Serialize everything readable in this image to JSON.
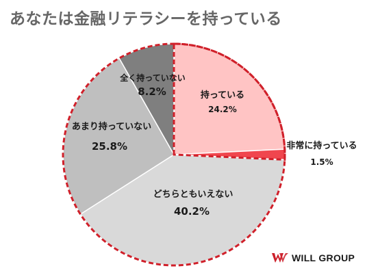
{
  "title": "あなたは金融リテラシーを持っている",
  "logo": {
    "text": "WILL GROUP",
    "icon": "will-group-w-logo",
    "color": "#cc1f2a"
  },
  "colors": {
    "highlight_border": "#d0202a",
    "slice_border": "#ffffff"
  },
  "chart_data": {
    "type": "pie",
    "title": "あなたは金融リテラシーを持っている",
    "start_angle_deg": 0,
    "direction": "clockwise",
    "highlighted": [
      "持っている",
      "非常に持っている"
    ],
    "slices": [
      {
        "label": "持っている",
        "value": 24.2,
        "display": "24.2%",
        "color": "#ffc4c4"
      },
      {
        "label": "非常に持っている",
        "value": 1.5,
        "display": "1.5%",
        "color": "#f0464e"
      },
      {
        "label": "どちらともいえない",
        "value": 40.2,
        "display": "40.2%",
        "color": "#d9d9d9"
      },
      {
        "label": "あまり持っていない",
        "value": 25.8,
        "display": "25.8%",
        "color": "#bfbfbf"
      },
      {
        "label": "全く持っていない",
        "value": 8.2,
        "display": "8.2%",
        "color": "#7f7f7f"
      }
    ]
  }
}
